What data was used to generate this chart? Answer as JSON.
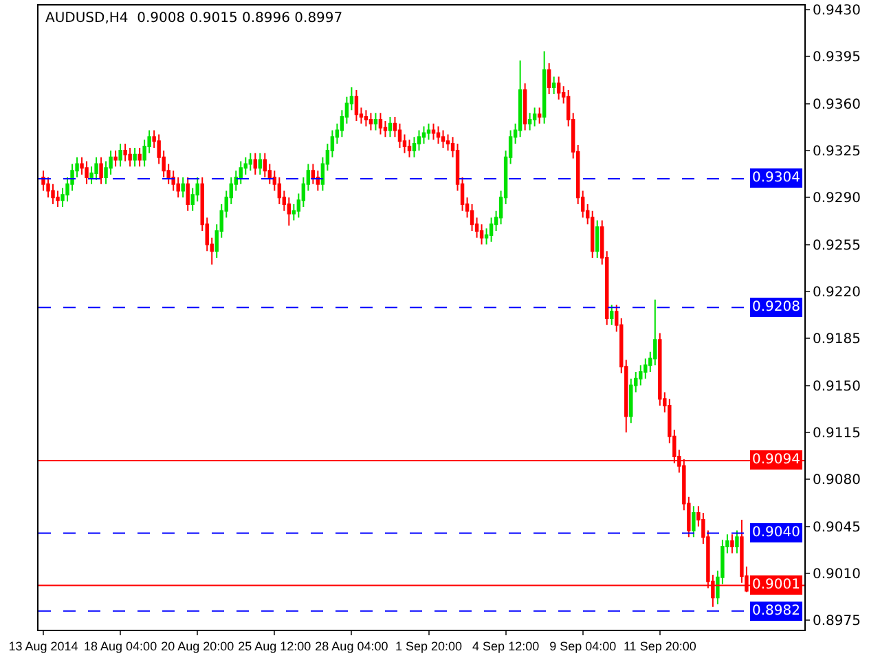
{
  "chart_data": {
    "type": "candlestick",
    "title": "AUDUSD,H4  0.9008 0.9015 0.8996 0.8997",
    "categories": [
      "13 Aug 2014",
      null,
      null,
      null,
      null,
      null,
      null,
      null,
      null,
      null,
      null,
      null,
      null,
      null,
      null,
      null,
      "18 Aug 04:00",
      null,
      null,
      null,
      null,
      null,
      null,
      null,
      null,
      null,
      null,
      null,
      null,
      null,
      null,
      null,
      "20 Aug 20:00",
      null,
      null,
      null,
      null,
      null,
      null,
      null,
      null,
      null,
      null,
      null,
      null,
      null,
      null,
      null,
      "25 Aug 12:00",
      null,
      null,
      null,
      null,
      null,
      null,
      null,
      null,
      null,
      null,
      null,
      null,
      null,
      null,
      null,
      "28 Aug 04:00",
      null,
      null,
      null,
      null,
      null,
      null,
      null,
      null,
      null,
      null,
      null,
      null,
      null,
      null,
      null,
      "1 Sep 20:00",
      null,
      null,
      null,
      null,
      null,
      null,
      null,
      null,
      null,
      null,
      null,
      null,
      null,
      null,
      null,
      "4 Sep 12:00",
      null,
      null,
      null,
      null,
      null,
      null,
      null,
      null,
      null,
      null,
      null,
      null,
      null,
      null,
      null,
      "9 Sep 04:00",
      null,
      null,
      null,
      null,
      null,
      null,
      null,
      null,
      null,
      null,
      null,
      null,
      null,
      null,
      null,
      "11 Sep 20:00",
      null,
      null,
      null,
      null,
      null,
      null,
      null,
      null,
      null,
      null,
      null,
      null,
      null,
      null,
      null,
      null,
      null,
      null
    ],
    "ohlc": [
      [
        0.9305,
        0.931,
        0.9295,
        0.93
      ],
      [
        0.93,
        0.9305,
        0.929,
        0.9295
      ],
      [
        0.9295,
        0.93,
        0.9285,
        0.929
      ],
      [
        0.929,
        0.9295,
        0.9283,
        0.9288
      ],
      [
        0.9288,
        0.9297,
        0.9283,
        0.9292
      ],
      [
        0.9292,
        0.9305,
        0.9287,
        0.93
      ],
      [
        0.93,
        0.9315,
        0.9295,
        0.931
      ],
      [
        0.931,
        0.932,
        0.9305,
        0.9315
      ],
      [
        0.9315,
        0.932,
        0.9307,
        0.9312
      ],
      [
        0.9312,
        0.9317,
        0.93,
        0.9305
      ],
      [
        0.9305,
        0.9313,
        0.93,
        0.9308
      ],
      [
        0.9308,
        0.932,
        0.9303,
        0.9315
      ],
      [
        0.9315,
        0.932,
        0.93,
        0.9305
      ],
      [
        0.9305,
        0.9317,
        0.93,
        0.9312
      ],
      [
        0.9312,
        0.9325,
        0.9307,
        0.932
      ],
      [
        0.932,
        0.9325,
        0.9313,
        0.9318
      ],
      [
        0.9318,
        0.933,
        0.9313,
        0.9325
      ],
      [
        0.9325,
        0.933,
        0.9317,
        0.9322
      ],
      [
        0.9322,
        0.9327,
        0.9313,
        0.9318
      ],
      [
        0.9318,
        0.9327,
        0.9313,
        0.9322
      ],
      [
        0.9322,
        0.9327,
        0.9313,
        0.9318
      ],
      [
        0.9318,
        0.9333,
        0.9313,
        0.9328
      ],
      [
        0.9328,
        0.934,
        0.9323,
        0.9335
      ],
      [
        0.9335,
        0.934,
        0.9327,
        0.9332
      ],
      [
        0.9332,
        0.9337,
        0.9315,
        0.932
      ],
      [
        0.932,
        0.9325,
        0.9305,
        0.931
      ],
      [
        0.931,
        0.9315,
        0.93,
        0.9305
      ],
      [
        0.9305,
        0.931,
        0.9295,
        0.93
      ],
      [
        0.93,
        0.9305,
        0.929,
        0.9295
      ],
      [
        0.9295,
        0.9305,
        0.929,
        0.93
      ],
      [
        0.93,
        0.9305,
        0.928,
        0.9285
      ],
      [
        0.9285,
        0.9297,
        0.928,
        0.9292
      ],
      [
        0.9292,
        0.9305,
        0.9287,
        0.93
      ],
      [
        0.93,
        0.9305,
        0.9265,
        0.927
      ],
      [
        0.927,
        0.9275,
        0.925,
        0.9255
      ],
      [
        0.9255,
        0.926,
        0.924,
        0.925
      ],
      [
        0.925,
        0.927,
        0.9245,
        0.9265
      ],
      [
        0.9265,
        0.9285,
        0.926,
        0.928
      ],
      [
        0.928,
        0.9295,
        0.9275,
        0.929
      ],
      [
        0.929,
        0.9305,
        0.9285,
        0.93
      ],
      [
        0.93,
        0.931,
        0.9295,
        0.9305
      ],
      [
        0.9305,
        0.9317,
        0.93,
        0.9312
      ],
      [
        0.9312,
        0.932,
        0.9307,
        0.9315
      ],
      [
        0.9315,
        0.9323,
        0.931,
        0.9318
      ],
      [
        0.9318,
        0.9323,
        0.9307,
        0.9312
      ],
      [
        0.9312,
        0.9323,
        0.9307,
        0.9318
      ],
      [
        0.9318,
        0.9323,
        0.9305,
        0.931
      ],
      [
        0.931,
        0.9315,
        0.93,
        0.9305
      ],
      [
        0.9305,
        0.931,
        0.9295,
        0.93
      ],
      [
        0.93,
        0.9305,
        0.9285,
        0.929
      ],
      [
        0.929,
        0.9295,
        0.928,
        0.9285
      ],
      [
        0.9285,
        0.929,
        0.9269,
        0.9278
      ],
      [
        0.9278,
        0.9285,
        0.9273,
        0.928
      ],
      [
        0.928,
        0.9293,
        0.9275,
        0.9288
      ],
      [
        0.9288,
        0.9305,
        0.9283,
        0.93
      ],
      [
        0.93,
        0.9315,
        0.9295,
        0.931
      ],
      [
        0.931,
        0.9315,
        0.93,
        0.9305
      ],
      [
        0.9305,
        0.931,
        0.9295,
        0.93
      ],
      [
        0.93,
        0.932,
        0.9295,
        0.9315
      ],
      [
        0.9315,
        0.933,
        0.931,
        0.9325
      ],
      [
        0.9325,
        0.934,
        0.932,
        0.9335
      ],
      [
        0.9335,
        0.9345,
        0.933,
        0.934
      ],
      [
        0.934,
        0.9355,
        0.9335,
        0.935
      ],
      [
        0.935,
        0.9365,
        0.9345,
        0.936
      ],
      [
        0.936,
        0.9372,
        0.9355,
        0.9365
      ],
      [
        0.9365,
        0.937,
        0.9347,
        0.9352
      ],
      [
        0.9352,
        0.9357,
        0.9345,
        0.935
      ],
      [
        0.935,
        0.9355,
        0.9343,
        0.9348
      ],
      [
        0.9348,
        0.9353,
        0.934,
        0.9345
      ],
      [
        0.9345,
        0.9353,
        0.934,
        0.9348
      ],
      [
        0.9348,
        0.9353,
        0.9337,
        0.9342
      ],
      [
        0.9342,
        0.9347,
        0.9335,
        0.934
      ],
      [
        0.934,
        0.935,
        0.9335,
        0.9345
      ],
      [
        0.9345,
        0.935,
        0.9335,
        0.934
      ],
      [
        0.934,
        0.9345,
        0.9327,
        0.9332
      ],
      [
        0.9332,
        0.9337,
        0.9323,
        0.9328
      ],
      [
        0.9328,
        0.9333,
        0.932,
        0.9325
      ],
      [
        0.9325,
        0.9335,
        0.932,
        0.933
      ],
      [
        0.933,
        0.934,
        0.9325,
        0.9335
      ],
      [
        0.9335,
        0.9343,
        0.933,
        0.9338
      ],
      [
        0.9338,
        0.9345,
        0.9333,
        0.934
      ],
      [
        0.934,
        0.9345,
        0.9333,
        0.9338
      ],
      [
        0.9338,
        0.9343,
        0.933,
        0.9335
      ],
      [
        0.9335,
        0.934,
        0.9327,
        0.9332
      ],
      [
        0.9332,
        0.9337,
        0.9325,
        0.933
      ],
      [
        0.933,
        0.9335,
        0.932,
        0.9325
      ],
      [
        0.9325,
        0.933,
        0.9295,
        0.93
      ],
      [
        0.93,
        0.9305,
        0.928,
        0.9285
      ],
      [
        0.9285,
        0.929,
        0.9275,
        0.928
      ],
      [
        0.928,
        0.9285,
        0.9265,
        0.927
      ],
      [
        0.927,
        0.9275,
        0.926,
        0.9265
      ],
      [
        0.9265,
        0.927,
        0.9255,
        0.926
      ],
      [
        0.926,
        0.9267,
        0.9255,
        0.9262
      ],
      [
        0.9262,
        0.9275,
        0.9257,
        0.927
      ],
      [
        0.927,
        0.928,
        0.9265,
        0.9275
      ],
      [
        0.9275,
        0.9295,
        0.927,
        0.929
      ],
      [
        0.929,
        0.9325,
        0.9285,
        0.932
      ],
      [
        0.932,
        0.934,
        0.9315,
        0.9335
      ],
      [
        0.9335,
        0.9345,
        0.933,
        0.934
      ],
      [
        0.934,
        0.9392,
        0.9335,
        0.937
      ],
      [
        0.937,
        0.9375,
        0.934,
        0.9345
      ],
      [
        0.9345,
        0.9353,
        0.934,
        0.9348
      ],
      [
        0.9348,
        0.9357,
        0.9343,
        0.9352
      ],
      [
        0.9352,
        0.9357,
        0.9345,
        0.935
      ],
      [
        0.935,
        0.9399,
        0.9345,
        0.9385
      ],
      [
        0.9385,
        0.939,
        0.9367,
        0.9372
      ],
      [
        0.9372,
        0.938,
        0.9367,
        0.9375
      ],
      [
        0.9375,
        0.938,
        0.9363,
        0.9368
      ],
      [
        0.9368,
        0.9373,
        0.936,
        0.9365
      ],
      [
        0.9365,
        0.937,
        0.9343,
        0.9348
      ],
      [
        0.9348,
        0.9353,
        0.9319,
        0.9324
      ],
      [
        0.9324,
        0.9329,
        0.9285,
        0.929
      ],
      [
        0.929,
        0.9295,
        0.9275,
        0.928
      ],
      [
        0.928,
        0.9285,
        0.927,
        0.9275
      ],
      [
        0.9275,
        0.928,
        0.9245,
        0.925
      ],
      [
        0.925,
        0.9273,
        0.9245,
        0.9268
      ],
      [
        0.9268,
        0.9273,
        0.924,
        0.9245
      ],
      [
        0.9245,
        0.925,
        0.9195,
        0.92
      ],
      [
        0.92,
        0.921,
        0.9195,
        0.9205
      ],
      [
        0.9205,
        0.921,
        0.919,
        0.9195
      ],
      [
        0.9195,
        0.92,
        0.9159,
        0.9164
      ],
      [
        0.9164,
        0.9169,
        0.9115,
        0.9127
      ],
      [
        0.9127,
        0.9155,
        0.9122,
        0.915
      ],
      [
        0.915,
        0.916,
        0.9145,
        0.9155
      ],
      [
        0.9155,
        0.9165,
        0.915,
        0.916
      ],
      [
        0.916,
        0.917,
        0.9155,
        0.9165
      ],
      [
        0.9165,
        0.9175,
        0.916,
        0.917
      ],
      [
        0.917,
        0.9214,
        0.9165,
        0.9184
      ],
      [
        0.9184,
        0.9189,
        0.9135,
        0.914
      ],
      [
        0.914,
        0.9145,
        0.913,
        0.9135
      ],
      [
        0.9135,
        0.914,
        0.9107,
        0.9112
      ],
      [
        0.9112,
        0.9117,
        0.9092,
        0.9097
      ],
      [
        0.9097,
        0.9102,
        0.9085,
        0.909
      ],
      [
        0.909,
        0.9095,
        0.9057,
        0.9062
      ],
      [
        0.9062,
        0.9067,
        0.9037,
        0.9042
      ],
      [
        0.9042,
        0.906,
        0.9037,
        0.9055
      ],
      [
        0.9055,
        0.906,
        0.9045,
        0.905
      ],
      [
        0.905,
        0.9055,
        0.9032,
        0.9037
      ],
      [
        0.9037,
        0.9042,
        0.8999,
        0.9004
      ],
      [
        0.9004,
        0.9009,
        0.8985,
        0.8992
      ],
      [
        0.8992,
        0.9012,
        0.8987,
        0.9007
      ],
      [
        0.9007,
        0.9035,
        0.9002,
        0.903
      ],
      [
        0.903,
        0.9039,
        0.9025,
        0.9034
      ],
      [
        0.9034,
        0.9039,
        0.9025,
        0.903
      ],
      [
        0.903,
        0.9042,
        0.9025,
        0.9037
      ],
      [
        0.9037,
        0.905,
        0.9003,
        0.9008
      ],
      [
        0.9008,
        0.9015,
        0.8996,
        0.8997
      ]
    ],
    "ylim": [
      0.8968,
      0.9433
    ],
    "yticks": [
      0.8975,
      {
        "value": 0.901,
        "label": "0.9010"
      },
      0.9045,
      {
        "value": 0.908,
        "label": "0.9080"
      },
      0.9115,
      {
        "value": 0.915,
        "label": "0.9150"
      },
      0.9185,
      {
        "value": 0.922,
        "label": "0.9220"
      },
      0.9255,
      {
        "value": 0.929,
        "label": "0.9290"
      },
      0.9325,
      {
        "value": 0.936,
        "label": "0.9360"
      },
      0.9395,
      {
        "value": 0.943,
        "label": "0.9430"
      }
    ],
    "ref_lines": [
      {
        "axis": "y",
        "value": 0.9304,
        "label": "0.9304",
        "color": "#0000ff",
        "line_style": "dashed"
      },
      {
        "axis": "y",
        "value": 0.9208,
        "label": "0.9208",
        "color": "#0000ff",
        "line_style": "dashed"
      },
      {
        "axis": "y",
        "value": 0.9094,
        "label": "0.9094",
        "color": "#ff0000",
        "line_style": "solid"
      },
      {
        "axis": "y",
        "value": 0.904,
        "label": "0.9040",
        "color": "#0000ff",
        "line_style": "dashed"
      },
      {
        "axis": "y",
        "value": 0.9001,
        "label": "0.9001",
        "color": "#ff0000",
        "line_style": "solid"
      },
      {
        "axis": "y",
        "value": 0.8982,
        "label": "0.8982",
        "color": "#0000ff",
        "line_style": "dashed"
      }
    ]
  }
}
